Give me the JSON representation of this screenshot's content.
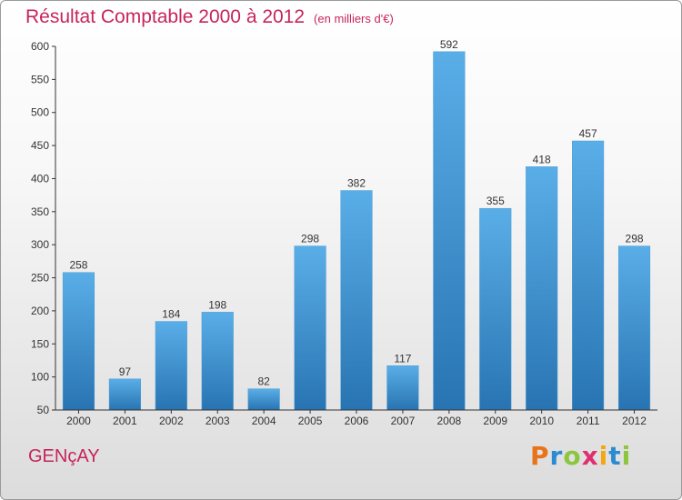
{
  "header": {
    "title": "Résultat Comptable 2000 à 2012",
    "unit": "(en milliers d'€)"
  },
  "footer": {
    "town": "GENçAY",
    "logo": "Proxiti"
  },
  "colors": {
    "title": "#c7245c",
    "bar_light": "#5aaee8",
    "bar_dark": "#2874b2",
    "axis": "#333333"
  },
  "chart_data": {
    "type": "bar",
    "title": "Résultat Comptable 2000 à 2012",
    "xlabel": "",
    "ylabel": "",
    "categories": [
      "2000",
      "2001",
      "2002",
      "2003",
      "2004",
      "2005",
      "2006",
      "2007",
      "2008",
      "2009",
      "2010",
      "2011",
      "2012"
    ],
    "values": [
      258,
      97,
      184,
      198,
      82,
      298,
      382,
      117,
      592,
      355,
      418,
      457,
      298
    ],
    "ylim": [
      50,
      600
    ],
    "yticks": [
      50,
      100,
      150,
      200,
      250,
      300,
      350,
      400,
      450,
      500,
      550,
      600
    ],
    "grid": false,
    "data_labels": true
  }
}
